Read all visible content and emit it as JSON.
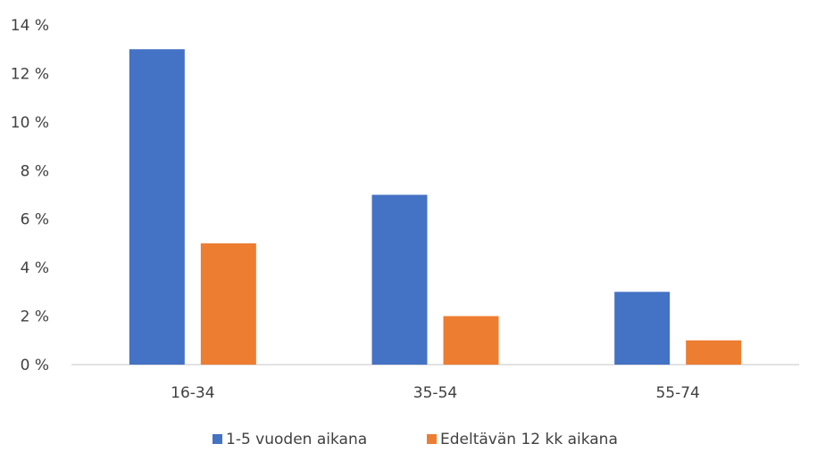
{
  "chart_data": {
    "type": "bar",
    "categories": [
      "16-34",
      "35-54",
      "55-74"
    ],
    "series": [
      {
        "name": "1-5 vuoden aikana",
        "values": [
          13,
          7,
          3
        ],
        "color": "#4472c4"
      },
      {
        "name": "Edeltävän 12 kk aikana",
        "values": [
          5,
          2,
          1
        ],
        "color": "#ed7d31"
      }
    ],
    "ylim": [
      0,
      14
    ],
    "yticks": [
      0,
      2,
      4,
      6,
      8,
      10,
      12,
      14
    ],
    "ytick_labels": [
      "0 %",
      "2 %",
      "4 %",
      "6 %",
      "8 %",
      "10 %",
      "12 %",
      "14 %"
    ],
    "grid": true,
    "legend": "bottom-center",
    "axis_color": "#d9d9d9"
  }
}
